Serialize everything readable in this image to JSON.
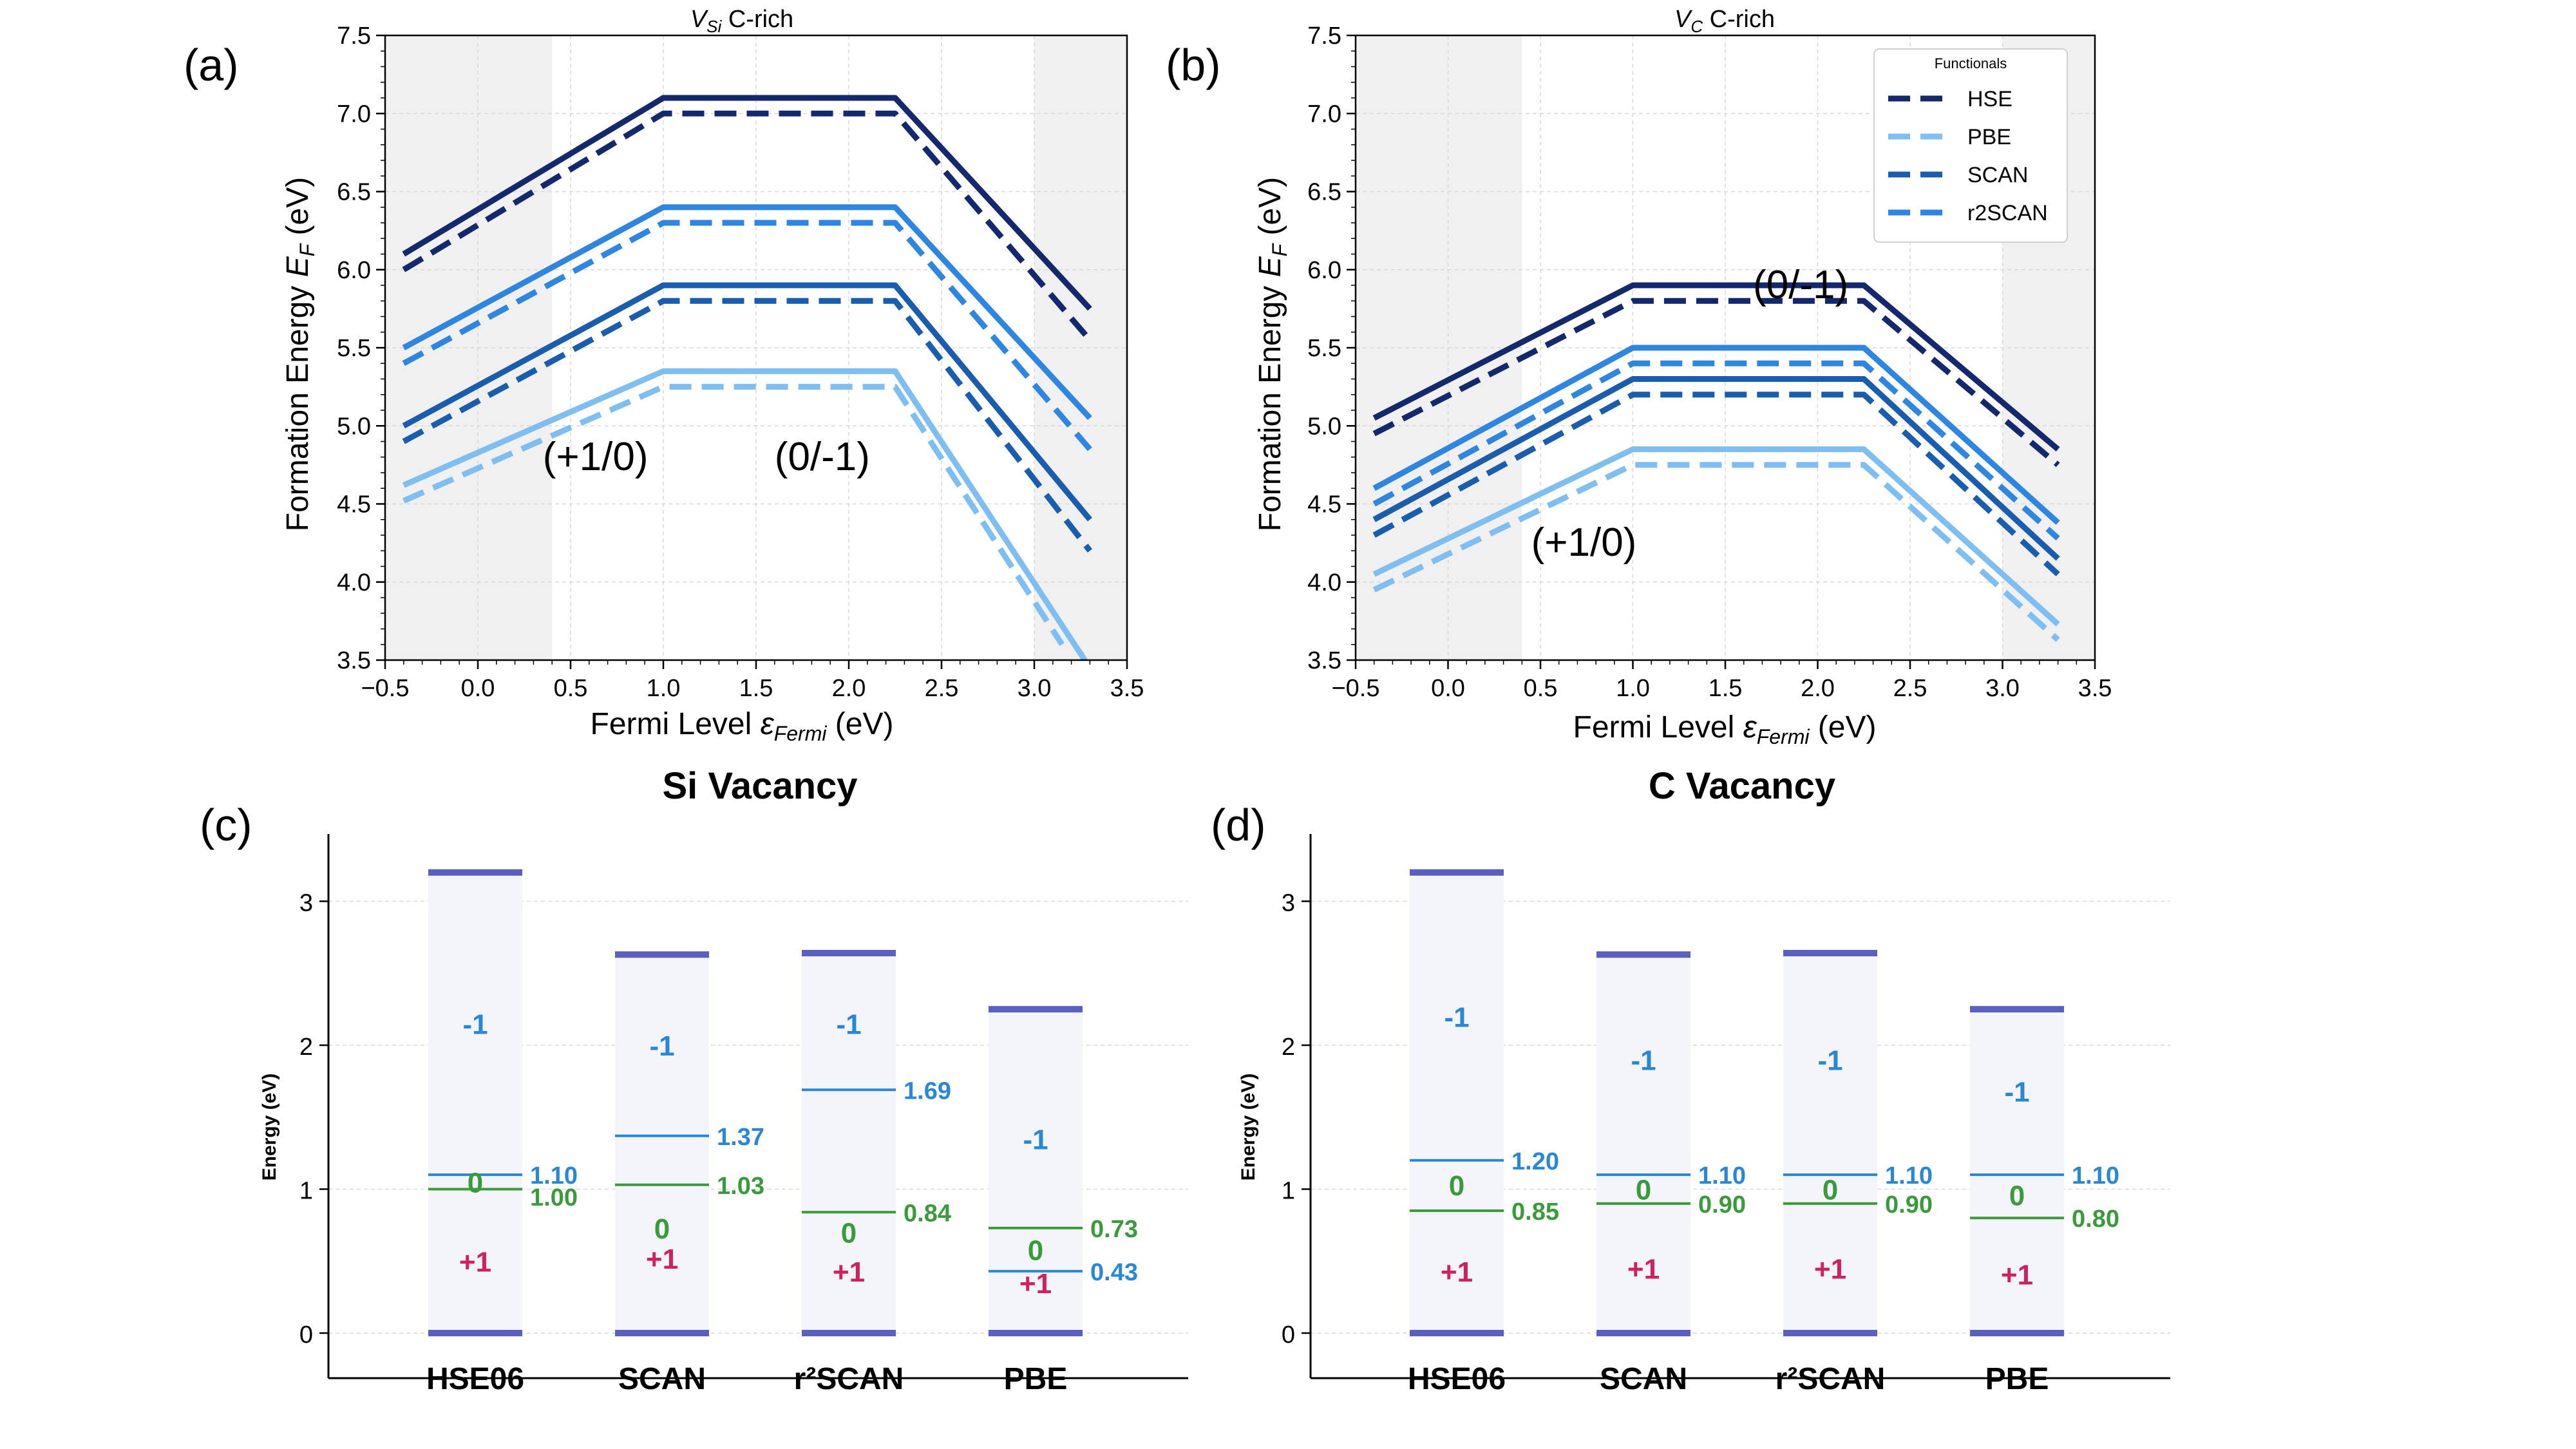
{
  "chart_data": [
    {
      "type": "line",
      "panel_label": "(a)",
      "title": "V_Si C-rich",
      "title_main": "V",
      "title_sub": "Si",
      "title_rest": " C-rich",
      "xlabel": "Fermi Level ε_Fermi (eV)",
      "xlabel_main": "Fermi Level ",
      "xlabel_sym": "ε",
      "xlabel_sub": "Fermi",
      "xlabel_unit": " (eV)",
      "ylabel": "Formation Energy E_F (eV)",
      "ylabel_main": "Formation Energy ",
      "ylabel_sym": "E",
      "ylabel_sub": "F",
      "ylabel_unit": " (eV)",
      "xlim": [
        -0.5,
        3.5
      ],
      "ylim": [
        3.5,
        7.5
      ],
      "xticks": [
        "−0.5",
        "0.0",
        "0.5",
        "1.0",
        "1.5",
        "2.0",
        "2.5",
        "3.0",
        "3.5"
      ],
      "yticks": [
        "3.5",
        "4.0",
        "4.5",
        "5.0",
        "5.5",
        "6.0",
        "6.5",
        "7.0",
        "7.5"
      ],
      "shaded_x": [
        [
          -0.5,
          0.4
        ],
        [
          3.0,
          3.5
        ]
      ],
      "grid": true,
      "series": [
        {
          "name": "HSE solid",
          "style": "solid",
          "color": "#14286e",
          "x": [
            -0.4,
            1.0,
            2.25,
            3.3
          ],
          "y": [
            6.1,
            7.1,
            7.1,
            5.75
          ]
        },
        {
          "name": "HSE dashed",
          "style": "dashed",
          "color": "#14286e",
          "x": [
            -0.4,
            1.0,
            2.25,
            3.3
          ],
          "y": [
            6.0,
            7.0,
            7.0,
            5.55
          ]
        },
        {
          "name": "r2SCAN solid",
          "style": "solid",
          "color": "#2e86e0",
          "x": [
            -0.4,
            1.0,
            2.25,
            3.3
          ],
          "y": [
            5.5,
            6.4,
            6.4,
            5.05
          ]
        },
        {
          "name": "r2SCAN dashed",
          "style": "dashed",
          "color": "#2e86e0",
          "x": [
            -0.4,
            1.0,
            2.25,
            3.3
          ],
          "y": [
            5.4,
            6.3,
            6.3,
            4.85
          ]
        },
        {
          "name": "SCAN solid",
          "style": "solid",
          "color": "#1a5cae",
          "x": [
            -0.4,
            1.0,
            2.25,
            3.3
          ],
          "y": [
            5.0,
            5.9,
            5.9,
            4.4
          ]
        },
        {
          "name": "SCAN dashed",
          "style": "dashed",
          "color": "#1a5cae",
          "x": [
            -0.4,
            1.0,
            2.25,
            3.3
          ],
          "y": [
            4.9,
            5.8,
            5.8,
            4.2
          ]
        },
        {
          "name": "PBE solid",
          "style": "solid",
          "color": "#7fbef0",
          "x": [
            -0.4,
            1.0,
            2.25,
            3.3
          ],
          "y": [
            4.62,
            5.35,
            5.35,
            3.45
          ]
        },
        {
          "name": "PBE dashed",
          "style": "dashed",
          "color": "#7fbef0",
          "x": [
            -0.4,
            1.0,
            2.25,
            3.15
          ],
          "y": [
            4.52,
            5.25,
            5.25,
            3.6
          ]
        }
      ],
      "annotations": [
        {
          "text": "(+1/0)",
          "x": 0.35,
          "y": 4.8
        },
        {
          "text": "(0/-1)",
          "x": 1.6,
          "y": 4.8
        }
      ]
    },
    {
      "type": "line",
      "panel_label": "(b)",
      "title": "V_C C-rich",
      "title_main": "V",
      "title_sub": "C",
      "title_rest": " C-rich",
      "xlabel": "Fermi Level ε_Fermi (eV)",
      "xlabel_main": "Fermi Level ",
      "xlabel_sym": "ε",
      "xlabel_sub": "Fermi",
      "xlabel_unit": " (eV)",
      "ylabel": "Formation Energy E_F (eV)",
      "ylabel_main": "Formation Energy ",
      "ylabel_sym": "E",
      "ylabel_sub": "F",
      "ylabel_unit": " (eV)",
      "xlim": [
        -0.5,
        3.5
      ],
      "ylim": [
        3.5,
        7.5
      ],
      "xticks": [
        "−0.5",
        "0.0",
        "0.5",
        "1.0",
        "1.5",
        "2.0",
        "2.5",
        "3.0",
        "3.5"
      ],
      "yticks": [
        "3.5",
        "4.0",
        "4.5",
        "5.0",
        "5.5",
        "6.0",
        "6.5",
        "7.0",
        "7.5"
      ],
      "shaded_x": [
        [
          -0.5,
          0.4
        ],
        [
          3.0,
          3.5
        ]
      ],
      "grid": true,
      "series": [
        {
          "name": "HSE solid",
          "style": "solid",
          "color": "#14286e",
          "x": [
            -0.4,
            1.0,
            2.25,
            3.3
          ],
          "y": [
            5.05,
            5.9,
            5.9,
            4.85
          ]
        },
        {
          "name": "HSE dashed",
          "style": "dashed",
          "color": "#14286e",
          "x": [
            -0.4,
            1.0,
            2.25,
            3.3
          ],
          "y": [
            4.95,
            5.8,
            5.8,
            4.75
          ]
        },
        {
          "name": "r2SCAN solid",
          "style": "solid",
          "color": "#2e86e0",
          "x": [
            -0.4,
            1.0,
            2.25,
            3.3
          ],
          "y": [
            4.6,
            5.5,
            5.5,
            4.38
          ]
        },
        {
          "name": "r2SCAN dashed",
          "style": "dashed",
          "color": "#2e86e0",
          "x": [
            -0.4,
            1.0,
            2.25,
            3.3
          ],
          "y": [
            4.5,
            5.4,
            5.4,
            4.28
          ]
        },
        {
          "name": "SCAN solid",
          "style": "solid",
          "color": "#1a5cae",
          "x": [
            -0.4,
            1.0,
            2.25,
            3.3
          ],
          "y": [
            4.4,
            5.3,
            5.3,
            4.15
          ]
        },
        {
          "name": "SCAN dashed",
          "style": "dashed",
          "color": "#1a5cae",
          "x": [
            -0.4,
            1.0,
            2.25,
            3.3
          ],
          "y": [
            4.3,
            5.2,
            5.2,
            4.05
          ]
        },
        {
          "name": "PBE solid",
          "style": "solid",
          "color": "#7fbef0",
          "x": [
            -0.4,
            1.0,
            2.25,
            3.3
          ],
          "y": [
            4.05,
            4.85,
            4.85,
            3.73
          ]
        },
        {
          "name": "PBE dashed",
          "style": "dashed",
          "color": "#7fbef0",
          "x": [
            -0.4,
            1.0,
            2.25,
            3.3
          ],
          "y": [
            3.95,
            4.75,
            4.75,
            3.63
          ]
        }
      ],
      "annotations": [
        {
          "text": "(0/-1)",
          "x": 1.65,
          "y": 5.9
        },
        {
          "text": "(+1/0)",
          "x": 0.45,
          "y": 4.25
        }
      ],
      "legend": {
        "title": "Functionals",
        "placement": "top-right",
        "entries": [
          {
            "label": "HSE",
            "color": "#14286e"
          },
          {
            "label": "PBE",
            "color": "#7fbef0"
          },
          {
            "label": "SCAN",
            "color": "#1a5cae"
          },
          {
            "label": "r2SCAN",
            "color": "#2e86e0"
          }
        ]
      }
    },
    {
      "type": "bar",
      "panel_label": "(c)",
      "title": "Si Vacancy",
      "xlabel": "",
      "ylabel": "Energy (eV)",
      "ylim": [
        0,
        3.45
      ],
      "yticks": [
        "0",
        "1",
        "2",
        "3"
      ],
      "grid": true,
      "categories": [
        "HSE06",
        "SCAN",
        "r²SCAN",
        "PBE"
      ],
      "band_tops": [
        3.2,
        2.63,
        2.64,
        2.25
      ],
      "levels": [
        {
          "label": "1.10",
          "value": 1.1,
          "color": "#2a87d6",
          "bar": [
            1.1,
            1.37,
            1.69,
            0.43
          ]
        },
        {
          "label_values": [
            "1.00",
            "1.03",
            "0.84",
            "0.73"
          ],
          "color": "#3b9a3b",
          "bar": [
            1.0,
            1.03,
            0.84,
            0.73
          ]
        }
      ],
      "transition_values": {
        "minus_zero": [
          "1.10",
          "1.37",
          "1.69",
          "0.43"
        ],
        "zero_plus": [
          "1.00",
          "1.03",
          "0.84",
          "0.73"
        ]
      },
      "state_labels": {
        "minus": "-1",
        "zero": "0",
        "plus": "+1"
      },
      "state_y": {
        "minus": [
          2.15,
          2.0,
          2.15,
          1.35
        ],
        "zero": [
          1.05,
          0.73,
          0.7,
          0.58
        ],
        "plus": [
          0.5,
          0.52,
          0.43,
          0.35
        ]
      }
    },
    {
      "type": "bar",
      "panel_label": "(d)",
      "title": "C Vacancy",
      "xlabel": "",
      "ylabel": "Energy (eV)",
      "ylim": [
        0,
        3.45
      ],
      "yticks": [
        "0",
        "1",
        "2",
        "3"
      ],
      "grid": true,
      "categories": [
        "HSE06",
        "SCAN",
        "r²SCAN",
        "PBE"
      ],
      "band_tops": [
        3.2,
        2.63,
        2.64,
        2.25
      ],
      "transition_values": {
        "minus_zero": [
          "1.20",
          "1.10",
          "1.10",
          "1.10"
        ],
        "zero_plus": [
          "0.85",
          "0.90",
          "0.90",
          "0.80"
        ]
      },
      "levels_numeric": {
        "minus_zero": [
          1.2,
          1.1,
          1.1,
          1.1
        ],
        "zero_plus": [
          0.85,
          0.9,
          0.9,
          0.8
        ]
      },
      "state_labels": {
        "minus": "-1",
        "zero": "0",
        "plus": "+1"
      },
      "state_y": {
        "minus": [
          2.2,
          1.9,
          1.9,
          1.68
        ],
        "zero": [
          1.03,
          1.0,
          1.0,
          0.96
        ],
        "plus": [
          0.43,
          0.45,
          0.45,
          0.41
        ]
      }
    }
  ],
  "colors": {
    "band_bg": "#f4f4fb",
    "band_edge": "#5b5fbf",
    "level_minus": "#2a87d6",
    "level_zero": "#3b9a3b",
    "state_minus": "#2a87d6",
    "state_zero": "#3b9a3b",
    "state_plus": "#d0215f",
    "shade": "#f0f0f0",
    "grid": "#d9d9d9"
  }
}
